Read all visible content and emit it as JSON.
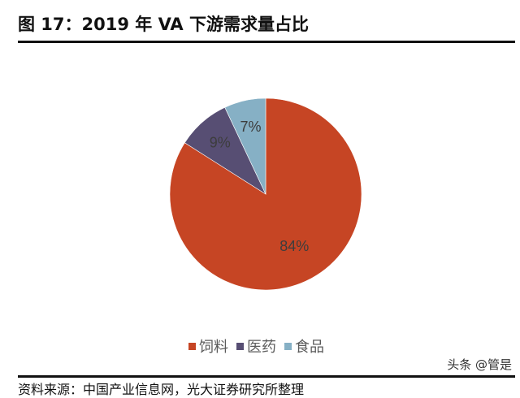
{
  "header": {
    "title": "图 17：2019 年 VA 下游需求量占比"
  },
  "chart_data": {
    "type": "pie",
    "title": "2019 年 VA 下游需求量占比",
    "categories": [
      "饲料",
      "医药",
      "食品"
    ],
    "values": [
      84,
      9,
      7
    ],
    "labels": [
      "84%",
      "9%",
      "7%"
    ],
    "colors": [
      "#C64524",
      "#574E73",
      "#86B0C5"
    ],
    "start_angle_deg": 90,
    "direction": "clockwise",
    "legend_position": "bottom"
  },
  "legend": {
    "items": [
      {
        "label": "饲料",
        "color": "#C64524"
      },
      {
        "label": "医药",
        "color": "#574E73"
      },
      {
        "label": "食品",
        "color": "#86B0C5"
      }
    ]
  },
  "footer": {
    "watermark": "头条 @管是",
    "source": "资料来源：中国产业信息网，光大证券研究所整理"
  }
}
